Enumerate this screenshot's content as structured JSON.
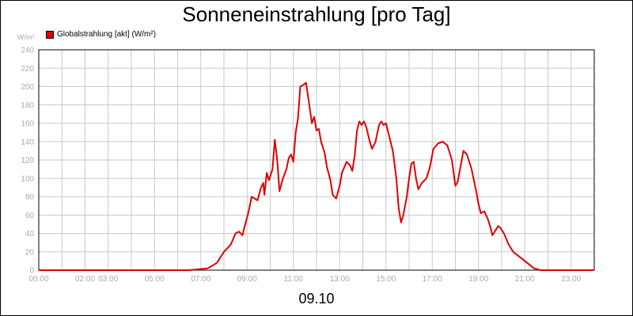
{
  "chart_data": {
    "type": "line",
    "title": "Sonneneinstrahlung [pro Tag]",
    "ylabel": "W/m²",
    "xlabel": "09.10",
    "legend": {
      "label": "Globalstrahlung [akt] (W/m²)",
      "placement": "top-left"
    },
    "ylim": [
      0,
      240
    ],
    "yticks": [
      0,
      20,
      40,
      60,
      80,
      100,
      120,
      140,
      160,
      180,
      200,
      220,
      240
    ],
    "xlim": [
      0,
      24
    ],
    "xtick_labels": [
      "00:00",
      "02:00",
      "03:00",
      "05:00",
      "07:00",
      "09:00",
      "11:00",
      "13:00",
      "15:00",
      "17:00",
      "19:00",
      "21:00",
      "23:00"
    ],
    "grid": true,
    "colors": {
      "series": "#e00000",
      "grid": "#c8c8c8",
      "axis_text": "#aaaaaa"
    },
    "series": [
      {
        "name": "Globalstrahlung [akt] (W/m²)",
        "points": [
          [
            0,
            0
          ],
          [
            6.5,
            0
          ],
          [
            7.3,
            2
          ],
          [
            7.7,
            8
          ],
          [
            8.0,
            20
          ],
          [
            8.3,
            28
          ],
          [
            8.5,
            40
          ],
          [
            8.65,
            42
          ],
          [
            8.8,
            38
          ],
          [
            8.9,
            48
          ],
          [
            9.05,
            62
          ],
          [
            9.2,
            80
          ],
          [
            9.45,
            76
          ],
          [
            9.6,
            90
          ],
          [
            9.7,
            95
          ],
          [
            9.75,
            82
          ],
          [
            9.85,
            106
          ],
          [
            9.95,
            98
          ],
          [
            10.1,
            110
          ],
          [
            10.2,
            142
          ],
          [
            10.3,
            120
          ],
          [
            10.4,
            86
          ],
          [
            10.55,
            100
          ],
          [
            10.7,
            110
          ],
          [
            10.8,
            122
          ],
          [
            10.9,
            126
          ],
          [
            11.0,
            118
          ],
          [
            11.1,
            150
          ],
          [
            11.2,
            165
          ],
          [
            11.3,
            200
          ],
          [
            11.45,
            202
          ],
          [
            11.55,
            204
          ],
          [
            11.7,
            178
          ],
          [
            11.8,
            160
          ],
          [
            11.9,
            167
          ],
          [
            12.0,
            152
          ],
          [
            12.1,
            154
          ],
          [
            12.2,
            140
          ],
          [
            12.35,
            128
          ],
          [
            12.45,
            112
          ],
          [
            12.6,
            98
          ],
          [
            12.7,
            82
          ],
          [
            12.85,
            78
          ],
          [
            13.0,
            92
          ],
          [
            13.1,
            106
          ],
          [
            13.3,
            118
          ],
          [
            13.45,
            114
          ],
          [
            13.55,
            108
          ],
          [
            13.65,
            125
          ],
          [
            13.75,
            152
          ],
          [
            13.85,
            162
          ],
          [
            13.95,
            158
          ],
          [
            14.05,
            162
          ],
          [
            14.15,
            156
          ],
          [
            14.3,
            140
          ],
          [
            14.4,
            132
          ],
          [
            14.55,
            140
          ],
          [
            14.7,
            158
          ],
          [
            14.8,
            162
          ],
          [
            14.9,
            158
          ],
          [
            15.0,
            160
          ],
          [
            15.15,
            145
          ],
          [
            15.3,
            130
          ],
          [
            15.45,
            100
          ],
          [
            15.55,
            68
          ],
          [
            15.65,
            52
          ],
          [
            15.75,
            60
          ],
          [
            15.9,
            80
          ],
          [
            16.0,
            100
          ],
          [
            16.1,
            116
          ],
          [
            16.2,
            118
          ],
          [
            16.3,
            100
          ],
          [
            16.4,
            88
          ],
          [
            16.55,
            95
          ],
          [
            16.75,
            100
          ],
          [
            16.9,
            112
          ],
          [
            17.05,
            132
          ],
          [
            17.25,
            138
          ],
          [
            17.45,
            140
          ],
          [
            17.65,
            136
          ],
          [
            17.85,
            120
          ],
          [
            18.0,
            92
          ],
          [
            18.1,
            96
          ],
          [
            18.2,
            110
          ],
          [
            18.35,
            130
          ],
          [
            18.5,
            126
          ],
          [
            18.7,
            110
          ],
          [
            18.9,
            86
          ],
          [
            19.0,
            72
          ],
          [
            19.1,
            62
          ],
          [
            19.25,
            64
          ],
          [
            19.4,
            56
          ],
          [
            19.5,
            48
          ],
          [
            19.6,
            38
          ],
          [
            19.75,
            44
          ],
          [
            19.85,
            48
          ],
          [
            19.95,
            46
          ],
          [
            20.1,
            40
          ],
          [
            20.3,
            28
          ],
          [
            20.5,
            20
          ],
          [
            20.8,
            14
          ],
          [
            21.1,
            8
          ],
          [
            21.4,
            2
          ],
          [
            21.7,
            0
          ],
          [
            24,
            0
          ]
        ]
      }
    ]
  }
}
